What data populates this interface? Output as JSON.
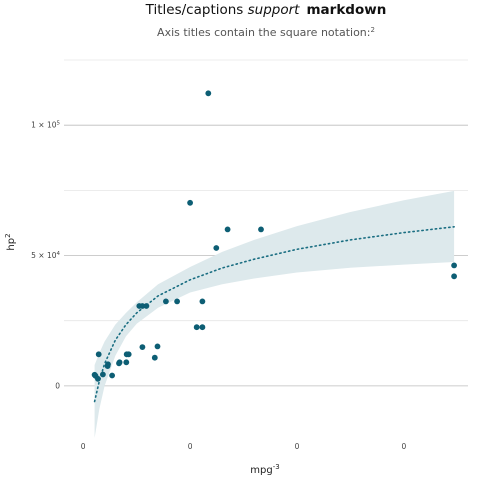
{
  "chart_data": {
    "type": "scatter",
    "title_prefix": "Titles/captions ",
    "title_emphasis": "support",
    "title_strong": "markdown",
    "subtitle_text": "Axis titles contain the square notation:",
    "subtitle_sup": "2",
    "xlabel_base": "mpg",
    "xlabel_sup": "-3",
    "ylabel_base": "hp",
    "ylabel_sup": "2",
    "x_ticks": [
      {
        "value": 0,
        "label": "0"
      },
      {
        "value": 0.0001,
        "label": "0"
      },
      {
        "value": 0.0002,
        "label": "0"
      },
      {
        "value": 0.0003,
        "label": "0"
      }
    ],
    "y_ticks": [
      {
        "value": 0,
        "label_base": "0",
        "label_sup": ""
      },
      {
        "value": 50000,
        "label_base": "5 × 10",
        "label_sup": "4"
      },
      {
        "value": 100000,
        "label_base": "1 × 10",
        "label_sup": "5"
      }
    ],
    "xlim": [
      -1.8e-05,
      0.00036
    ],
    "ylim": [
      -20000,
      125000
    ],
    "grid": true,
    "points": [
      {
        "x": 1.06e-05,
        "y": 4225
      },
      {
        "x": 1.15e-05,
        "y": 3844
      },
      {
        "x": 1.37e-05,
        "y": 2704
      },
      {
        "x": 1.45e-05,
        "y": 12100
      },
      {
        "x": 1.84e-05,
        "y": 4356
      },
      {
        "x": 2.28e-05,
        "y": 7569
      },
      {
        "x": 2.32e-05,
        "y": 8281
      },
      {
        "x": 2.7e-05,
        "y": 3969
      },
      {
        "x": 3.35e-05,
        "y": 8649
      },
      {
        "x": 3.4e-05,
        "y": 9025
      },
      {
        "x": 4.03e-05,
        "y": 9025
      },
      {
        "x": 4.07e-05,
        "y": 12100
      },
      {
        "x": 4.25e-05,
        "y": 12100
      },
      {
        "x": 5.25e-05,
        "y": 30625
      },
      {
        "x": 5.54e-05,
        "y": 14884
      },
      {
        "x": 5.54e-05,
        "y": 30625
      },
      {
        "x": 5.91e-05,
        "y": 30625
      },
      {
        "x": 6.7e-05,
        "y": 10816
      },
      {
        "x": 6.95e-05,
        "y": 15129
      },
      {
        "x": 7.73e-05,
        "y": 32400
      },
      {
        "x": 8.78e-05,
        "y": 32400
      },
      {
        "x": 0.0001,
        "y": 70225
      },
      {
        "x": 0.0001062,
        "y": 22500
      },
      {
        "x": 0.0001115,
        "y": 32400
      },
      {
        "x": 0.0001115,
        "y": 22500
      },
      {
        "x": 0.000117,
        "y": 112225
      },
      {
        "x": 0.0001245,
        "y": 52900
      },
      {
        "x": 0.0001351,
        "y": 60025
      },
      {
        "x": 0.0001663,
        "y": 60025
      },
      {
        "x": 0.000347,
        "y": 46225
      },
      {
        "x": 0.000347,
        "y": 42025
      }
    ],
    "trend": {
      "x": [
        1.06e-05,
        1.5e-05,
        2e-05,
        3e-05,
        4e-05,
        5e-05,
        7e-05,
        0.0001,
        0.00013,
        0.00016,
        0.0002,
        0.00025,
        0.0003,
        0.000347
      ],
      "y": [
        -6000,
        1800,
        8500,
        17500,
        23500,
        28000,
        34500,
        40700,
        45200,
        48600,
        52400,
        56000,
        58800,
        61000
      ],
      "lower": [
        -20000,
        -9000,
        0,
        11500,
        19000,
        23800,
        30000,
        35800,
        39000,
        41200,
        43500,
        45300,
        46500,
        47500
      ],
      "upper": [
        8000,
        12600,
        17000,
        23500,
        28000,
        32000,
        39000,
        45600,
        51400,
        56000,
        61300,
        66700,
        71200,
        74800
      ]
    },
    "colors": {
      "point": "#0d5e74",
      "trend": "#1a6e82",
      "band": "#dde9ec"
    }
  }
}
